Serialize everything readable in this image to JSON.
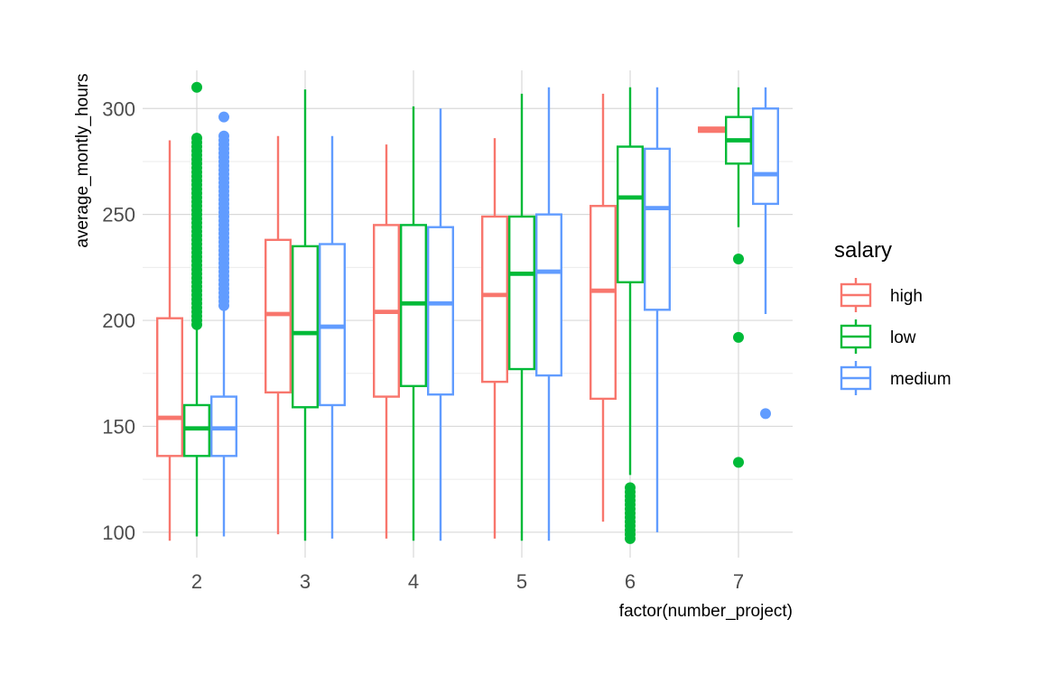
{
  "chart_data": {
    "type": "boxplot",
    "xlabel": "factor(number_project)",
    "ylabel": "average_montly_hours",
    "ylim": [
      88,
      318
    ],
    "y_ticks": [
      100,
      150,
      200,
      250,
      300
    ],
    "categories": [
      "2",
      "3",
      "4",
      "5",
      "6",
      "7"
    ],
    "grid": true,
    "legend": {
      "title": "salary",
      "placement": "right"
    },
    "series": [
      {
        "name": "high",
        "color": "#F8766D",
        "boxes": [
          {
            "category": "2",
            "whisker_low": 96,
            "q1": 136,
            "median": 154,
            "q3": 201,
            "whisker_high": 285,
            "outliers": []
          },
          {
            "category": "3",
            "whisker_low": 99,
            "q1": 166,
            "median": 203,
            "q3": 238,
            "whisker_high": 287,
            "outliers": []
          },
          {
            "category": "4",
            "whisker_low": 97,
            "q1": 164,
            "median": 204,
            "q3": 245,
            "whisker_high": 283,
            "outliers": []
          },
          {
            "category": "5",
            "whisker_low": 97,
            "q1": 171,
            "median": 212,
            "q3": 249,
            "whisker_high": 286,
            "outliers": []
          },
          {
            "category": "6",
            "whisker_low": 105,
            "q1": 163,
            "median": 214,
            "q3": 254,
            "whisker_high": 307,
            "outliers": []
          },
          {
            "category": "7",
            "whisker_low": 289,
            "q1": 289,
            "median": 290,
            "q3": 291,
            "whisker_high": 291,
            "outliers": []
          }
        ]
      },
      {
        "name": "low",
        "color": "#00BA38",
        "boxes": [
          {
            "category": "2",
            "whisker_low": 98,
            "q1": 136,
            "median": 149,
            "q3": 160,
            "whisker_high": 196,
            "outliers": [
              310,
              286,
              284,
              282,
              280,
              278,
              276,
              274,
              272,
              270,
              268,
              266,
              264,
              262,
              260,
              258,
              256,
              254,
              252,
              250,
              248,
              246,
              244,
              242,
              240,
              238,
              236,
              234,
              232,
              230,
              228,
              226,
              224,
              222,
              220,
              218,
              216,
              214,
              212,
              210,
              208,
              206,
              204,
              202,
              200,
              198
            ]
          },
          {
            "category": "3",
            "whisker_low": 96,
            "q1": 159,
            "median": 194,
            "q3": 235,
            "whisker_high": 309,
            "outliers": []
          },
          {
            "category": "4",
            "whisker_low": 96,
            "q1": 169,
            "median": 208,
            "q3": 245,
            "whisker_high": 301,
            "outliers": []
          },
          {
            "category": "5",
            "whisker_low": 96,
            "q1": 177,
            "median": 222,
            "q3": 249,
            "whisker_high": 307,
            "outliers": []
          },
          {
            "category": "6",
            "whisker_low": 127,
            "q1": 218,
            "median": 258,
            "q3": 282,
            "whisker_high": 310,
            "outliers": [
              121,
              119,
              117,
              115,
              113,
              111,
              109,
              107,
              105,
              103,
              101,
              99,
              97
            ]
          },
          {
            "category": "7",
            "whisker_low": 244,
            "q1": 274,
            "median": 285,
            "q3": 296,
            "whisker_high": 310,
            "outliers": [
              229,
              192,
              133
            ]
          }
        ]
      },
      {
        "name": "medium",
        "color": "#619CFF",
        "boxes": [
          {
            "category": "2",
            "whisker_low": 98,
            "q1": 136,
            "median": 149,
            "q3": 164,
            "whisker_high": 206,
            "outliers": [
              296,
              287,
              285,
              283,
              281,
              279,
              277,
              275,
              273,
              271,
              269,
              267,
              265,
              263,
              261,
              259,
              257,
              255,
              253,
              251,
              249,
              247,
              245,
              243,
              241,
              239,
              237,
              235,
              233,
              231,
              229,
              227,
              225,
              223,
              221,
              219,
              217,
              215,
              213,
              211,
              209,
              207
            ]
          },
          {
            "category": "3",
            "whisker_low": 97,
            "q1": 160,
            "median": 197,
            "q3": 236,
            "whisker_high": 287,
            "outliers": []
          },
          {
            "category": "4",
            "whisker_low": 96,
            "q1": 165,
            "median": 208,
            "q3": 244,
            "whisker_high": 300,
            "outliers": []
          },
          {
            "category": "5",
            "whisker_low": 96,
            "q1": 174,
            "median": 223,
            "q3": 250,
            "whisker_high": 310,
            "outliers": []
          },
          {
            "category": "6",
            "whisker_low": 100,
            "q1": 205,
            "median": 253,
            "q3": 281,
            "whisker_high": 310,
            "outliers": []
          },
          {
            "category": "7",
            "whisker_low": 203,
            "q1": 255,
            "median": 269,
            "q3": 300,
            "whisker_high": 310,
            "outliers": [
              156
            ]
          }
        ]
      }
    ]
  }
}
